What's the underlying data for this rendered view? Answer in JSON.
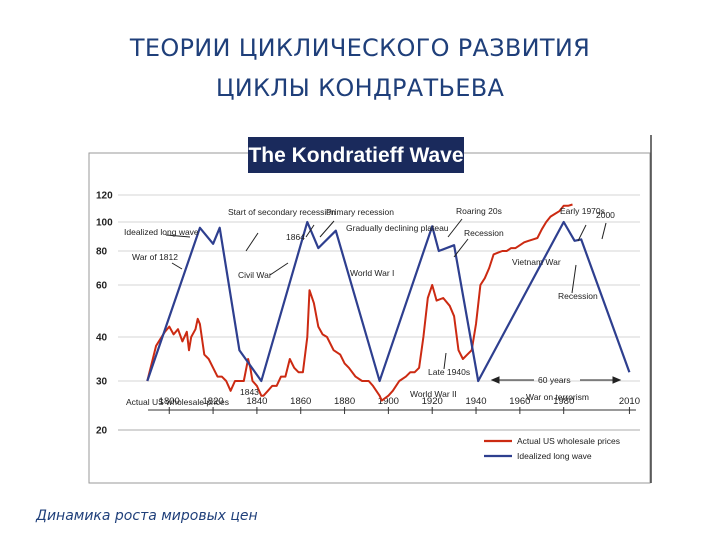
{
  "slide": {
    "title_line1": "ТЕОРИИ ЦИКЛИЧЕСКОГО РАЗВИТИЯ",
    "title_line2": "ЦИКЛЫ КОНДРАТЬЕВА",
    "caption": "Динамика роста мировых цен"
  },
  "chart_data": {
    "type": "line",
    "title": "The Kondratieff Wave",
    "xlabel": "",
    "ylabel": "",
    "x_ticks": [
      1800,
      1820,
      1840,
      1860,
      1880,
      1900,
      1920,
      1940,
      1960,
      1980,
      2010
    ],
    "y_ticks": [
      20,
      30,
      40,
      60,
      80,
      100,
      120
    ],
    "xlim": [
      1783,
      2013
    ],
    "ylim": [
      20,
      120
    ],
    "grid": true,
    "legend_position": "bottom-right",
    "colors": {
      "actual": "#cc2a12",
      "idealized": "#2e3f8f",
      "title_bg": "#1a2a5c",
      "grid": "#c7c7c7"
    },
    "series": [
      {
        "name": "Actual US wholesale prices",
        "color": "#cc2a12",
        "x": [
          1790,
          1794,
          1798,
          1800,
          1802,
          1804,
          1806,
          1808,
          1809,
          1810,
          1812,
          1813,
          1814,
          1816,
          1818,
          1820,
          1822,
          1824,
          1826,
          1828,
          1830,
          1832,
          1834,
          1836,
          1837,
          1838,
          1840,
          1842,
          1843,
          1845,
          1847,
          1849,
          1851,
          1853,
          1855,
          1857,
          1859,
          1861,
          1863,
          1864,
          1866,
          1868,
          1870,
          1872,
          1875,
          1878,
          1880,
          1882,
          1885,
          1888,
          1891,
          1893,
          1896,
          1897,
          1900,
          1902,
          1905,
          1908,
          1910,
          1912,
          1914,
          1916,
          1918,
          1920,
          1922,
          1925,
          1928,
          1930,
          1932,
          1934,
          1936,
          1938,
          1940,
          1942,
          1944,
          1946,
          1948,
          1950,
          1952,
          1954,
          1956,
          1958,
          1960,
          1962,
          1964,
          1966,
          1968,
          1970,
          1972,
          1974,
          1976,
          1978,
          1980,
          1982,
          1984
        ],
        "y": [
          30,
          38,
          42,
          44,
          41,
          43,
          39,
          42,
          37,
          40,
          43,
          47,
          45,
          36,
          35,
          33,
          31,
          31,
          30,
          28,
          30,
          30,
          30,
          35,
          33,
          30,
          29,
          27,
          27,
          28,
          29,
          29,
          31,
          31,
          35,
          33,
          32,
          32,
          40,
          58,
          53,
          44,
          41,
          40,
          37,
          36,
          34,
          33,
          31,
          30,
          30,
          29,
          27,
          26,
          27,
          28,
          30,
          31,
          32,
          32,
          33,
          40,
          55,
          60,
          54,
          55,
          52,
          48,
          37,
          35,
          36,
          37,
          45,
          60,
          64,
          70,
          78,
          79,
          80,
          80,
          82,
          82,
          84,
          86,
          87,
          88,
          89,
          95,
          100,
          104,
          106,
          108,
          112,
          112,
          113
        ]
      },
      {
        "name": "Idealized long wave",
        "color": "#2e3f8f",
        "x": [
          1790,
          1814,
          1820,
          1823,
          1832,
          1842,
          1863,
          1868,
          1876,
          1896,
          1920,
          1923,
          1930,
          1941,
          1980,
          1985,
          1988,
          2010
        ],
        "y": [
          30,
          96,
          85,
          96,
          37,
          30,
          100,
          82,
          94,
          30,
          97,
          80,
          84,
          30,
          100,
          87,
          88,
          32
        ]
      }
    ],
    "annotations": [
      "Idealized long wave",
      "War of 1812",
      "Start of secondary recession",
      "Civil War",
      "1843",
      "1864",
      "Primary recession",
      "Gradually declining plateau",
      "World War I",
      "Roaring 20s",
      "Recession",
      "Late 1940s",
      "World War II",
      "Early 1970s",
      "2000",
      "Vietnam War",
      "Recession",
      "60 years",
      "War on terrorism",
      "Actual US wholesale prices"
    ]
  }
}
